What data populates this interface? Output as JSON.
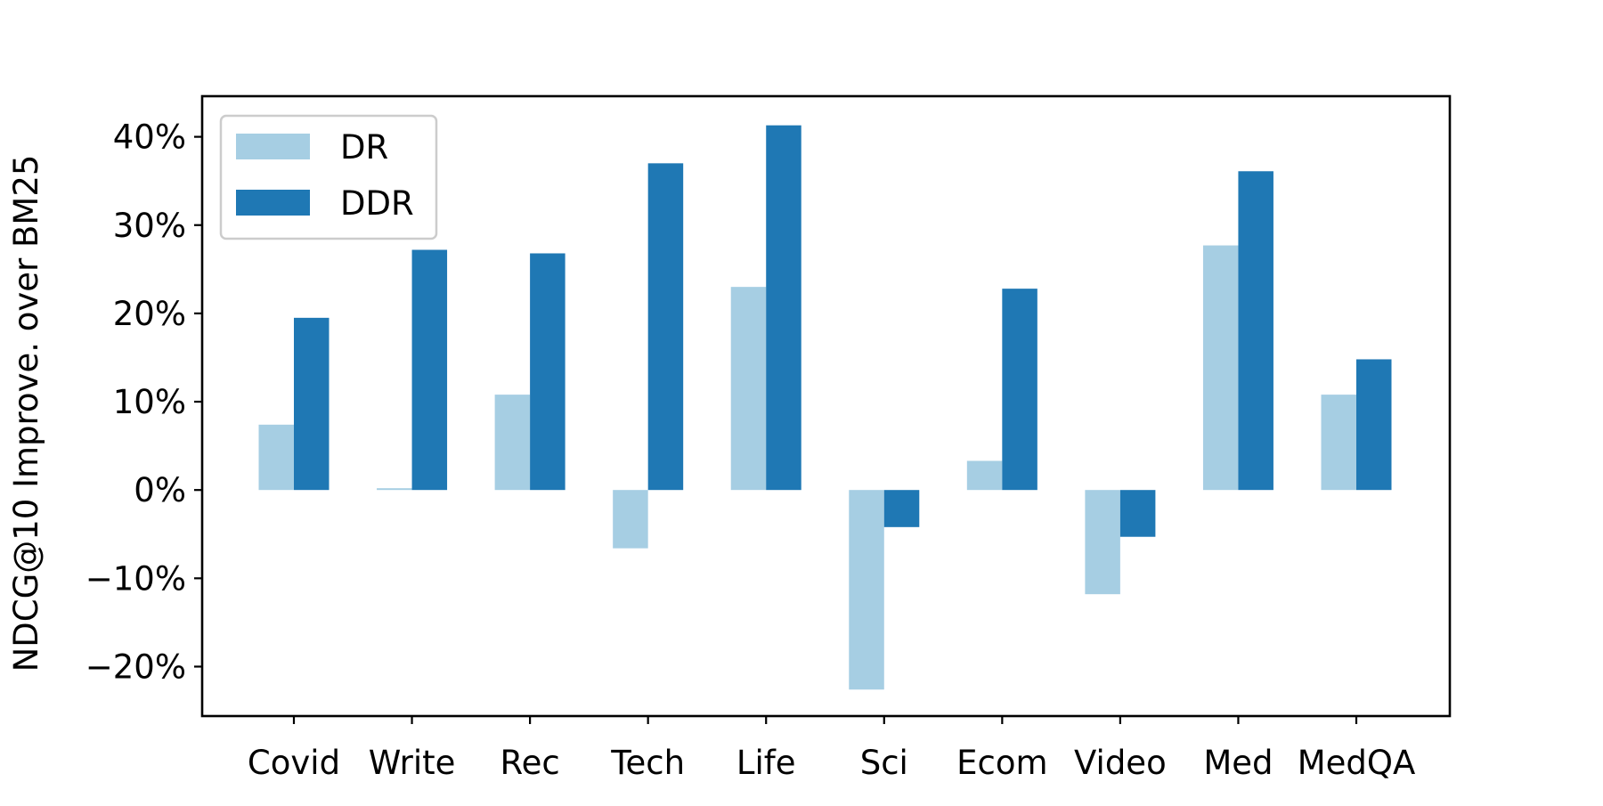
{
  "chart_data": {
    "type": "bar",
    "categories": [
      "Covid",
      "Write",
      "Rec",
      "Tech",
      "Life",
      "Sci",
      "Ecom",
      "Video",
      "Med",
      "MedQA"
    ],
    "series": [
      {
        "name": "DR",
        "color": "#a6cee3",
        "values": [
          7.4,
          0.2,
          10.8,
          -6.6,
          23.0,
          -22.6,
          3.3,
          -11.8,
          27.7,
          10.8
        ]
      },
      {
        "name": "DDR",
        "color": "#1f78b4",
        "values": [
          19.5,
          27.2,
          26.8,
          37.0,
          41.3,
          -4.2,
          22.8,
          -5.3,
          36.1,
          14.8
        ]
      }
    ],
    "title": "",
    "xlabel": "",
    "ylabel": "NDCG@10 Improve. over BM25",
    "ylim": [
      -25.6,
      44.6
    ],
    "yticks": [
      -20,
      -10,
      0,
      10,
      20,
      30,
      40
    ],
    "ytick_labels": [
      "−20%",
      "−10%",
      "0%",
      "10%",
      "20%",
      "30%",
      "40%"
    ],
    "grid": false,
    "legend_position": "top-left"
  }
}
